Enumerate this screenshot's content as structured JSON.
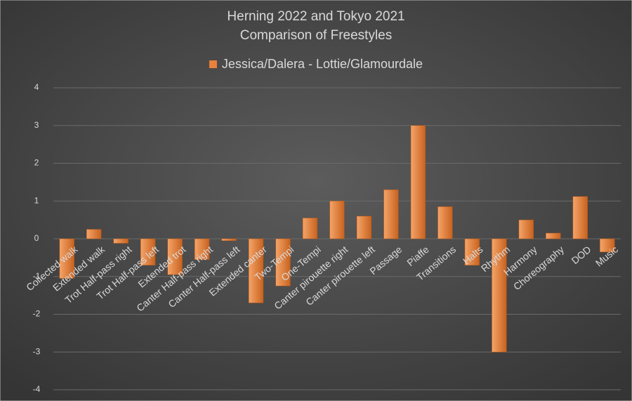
{
  "chart_data": {
    "type": "bar",
    "title": [
      "Herning 2022 and Tokyo 2021",
      "Comparison of Freestyles"
    ],
    "series": [
      {
        "name": "Jessica/Dalera - Lottie/Glamourdale",
        "color": "#e8813a",
        "values": [
          -1.05,
          0.25,
          -0.12,
          -0.7,
          -0.95,
          -0.55,
          -0.05,
          -1.7,
          -1.25,
          0.55,
          1.0,
          0.6,
          1.3,
          3.0,
          0.85,
          -0.7,
          -3.0,
          0.5,
          0.15,
          1.12,
          -0.35
        ]
      }
    ],
    "categories": [
      "Collected walk",
      "Extended walk",
      "Trot Half-pass right",
      "Trot Half-pass left",
      "Extended trot",
      "Canter Half-pass right",
      "Canter Half-pass left",
      "Extended canter",
      "Two-Tempi",
      "One-Tempi",
      "Canter pirouette right",
      "Canter pirouette left",
      "Passage",
      "Piaffe",
      "Transitions",
      "Halts",
      "Rhythm",
      "Harmony",
      "Choreography",
      "DOD",
      "Music"
    ],
    "ylim": [
      -4,
      4
    ],
    "yticks": [
      -4,
      -3,
      -2,
      -1,
      0,
      1,
      2,
      3,
      4
    ],
    "grid": true,
    "legend": "top"
  }
}
